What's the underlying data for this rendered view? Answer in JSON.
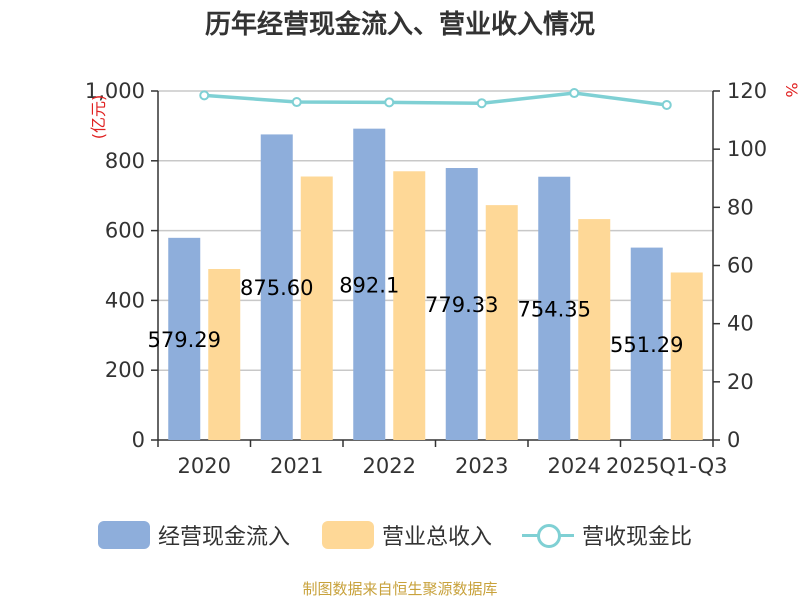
{
  "title": "历年经营现金流入、营业收入情况",
  "footer": "制图数据来自恒生聚源数据库",
  "colors": {
    "series1": "#8eaedb",
    "series2": "#fed897",
    "series3": "#7fd0d4"
  },
  "chart_data": {
    "type": "bar",
    "categories": [
      "2020",
      "2021",
      "2022",
      "2023",
      "2024",
      "2025Q1-Q3"
    ],
    "series": [
      {
        "name": "经营现金流入",
        "axis": "left",
        "values": [
          579.29,
          875.6,
          892.1,
          779.33,
          754.35,
          551.29
        ],
        "labels": [
          "579.29",
          "875.60",
          "892.1",
          "779.33",
          "754.35",
          "551.29"
        ]
      },
      {
        "name": "营业总收入",
        "axis": "left",
        "values": [
          490,
          755,
          770,
          673,
          633,
          480
        ]
      },
      {
        "name": "营收现金比",
        "type": "line",
        "axis": "right",
        "values": [
          118.5,
          116.2,
          116.1,
          115.8,
          119.3,
          115.2
        ]
      }
    ],
    "y_left": {
      "unit": "(亿元)",
      "ylim": [
        0,
        1000
      ],
      "ticks": [
        "0",
        "200",
        "400",
        "600",
        "800",
        "1,000"
      ]
    },
    "y_right": {
      "unit": "%",
      "ylim": [
        0,
        120
      ],
      "ticks": [
        "0",
        "20",
        "40",
        "60",
        "80",
        "100",
        "120"
      ]
    },
    "grid": true,
    "legend": "bottom"
  }
}
